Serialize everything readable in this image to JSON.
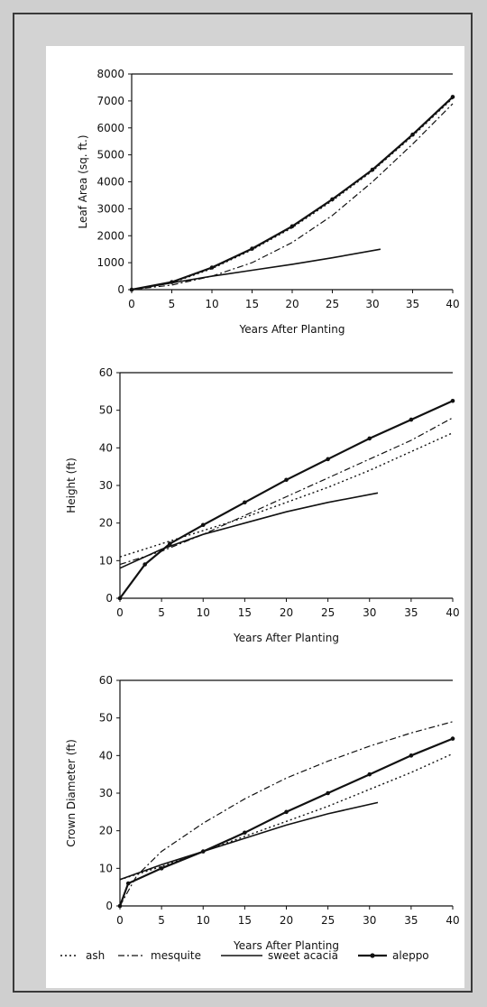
{
  "chart_data": [
    {
      "type": "line",
      "xlabel": "Years After Planting",
      "ylabel": "Leaf Area (sq. ft.)",
      "xlim": [
        0,
        40
      ],
      "ylim": [
        0,
        8000
      ],
      "xticks": [
        0,
        5,
        10,
        15,
        20,
        25,
        30,
        35,
        40
      ],
      "yticks": [
        0,
        1000,
        2000,
        3000,
        4000,
        5000,
        6000,
        7000,
        8000
      ],
      "series": [
        {
          "name": "ash",
          "style": "dotted",
          "x": [
            0,
            5,
            10,
            15,
            20,
            25,
            30,
            35,
            40
          ],
          "y": [
            0,
            250,
            780,
            1480,
            2300,
            3300,
            4400,
            5700,
            7100
          ]
        },
        {
          "name": "mesquite",
          "style": "dashdot",
          "x": [
            0,
            5,
            10,
            15,
            20,
            25,
            30,
            35,
            40
          ],
          "y": [
            0,
            170,
            500,
            1000,
            1750,
            2750,
            4000,
            5400,
            6900
          ]
        },
        {
          "name": "sweet acacia",
          "style": "solid",
          "x": [
            0,
            5,
            10,
            15,
            20,
            25,
            31
          ],
          "y": [
            0,
            250,
            500,
            720,
            940,
            1180,
            1500
          ]
        },
        {
          "name": "aleppo",
          "style": "marked",
          "x": [
            0,
            5,
            10,
            15,
            20,
            25,
            30,
            35,
            40
          ],
          "y": [
            0,
            280,
            820,
            1520,
            2350,
            3350,
            4450,
            5750,
            7150
          ]
        }
      ]
    },
    {
      "type": "line",
      "xlabel": "Years After Planting",
      "ylabel": "Height (ft)",
      "xlim": [
        0,
        40
      ],
      "ylim": [
        0,
        60
      ],
      "xticks": [
        0,
        5,
        10,
        15,
        20,
        25,
        30,
        35,
        40
      ],
      "yticks": [
        0,
        10,
        20,
        30,
        40,
        50,
        60
      ],
      "series": [
        {
          "name": "ash",
          "style": "dotted",
          "x": [
            0,
            5,
            10,
            15,
            20,
            25,
            30,
            35,
            40
          ],
          "y": [
            11,
            14.5,
            18,
            21.5,
            25.5,
            29.5,
            34,
            39,
            44
          ]
        },
        {
          "name": "mesquite",
          "style": "dashdot",
          "x": [
            0,
            5,
            10,
            15,
            20,
            25,
            30,
            35,
            40
          ],
          "y": [
            9,
            12.5,
            17,
            22,
            27,
            32,
            37,
            42,
            48
          ]
        },
        {
          "name": "sweet acacia",
          "style": "solid",
          "x": [
            0,
            5,
            10,
            15,
            20,
            25,
            31
          ],
          "y": [
            8,
            13,
            17,
            20,
            23,
            25.5,
            28
          ]
        },
        {
          "name": "aleppo",
          "style": "marked",
          "x": [
            0,
            3,
            6,
            10,
            15,
            20,
            25,
            30,
            35,
            40
          ],
          "y": [
            0,
            9,
            14.5,
            19.5,
            25.5,
            31.5,
            37,
            42.5,
            47.5,
            52.5
          ]
        }
      ]
    },
    {
      "type": "line",
      "xlabel": "Years After Planting",
      "ylabel": "Crown Diameter (ft)",
      "xlim": [
        0,
        40
      ],
      "ylim": [
        0,
        60
      ],
      "xticks": [
        0,
        5,
        10,
        15,
        20,
        25,
        30,
        35,
        40
      ],
      "yticks": [
        0,
        10,
        20,
        30,
        40,
        50,
        60
      ],
      "series": [
        {
          "name": "ash",
          "style": "dotted",
          "x": [
            0,
            5,
            10,
            15,
            20,
            25,
            30,
            35,
            40
          ],
          "y": [
            7,
            10.5,
            14.5,
            18.5,
            22.5,
            26.5,
            31,
            35.5,
            40.5
          ]
        },
        {
          "name": "mesquite",
          "style": "dashdot",
          "x": [
            0,
            2,
            5,
            10,
            15,
            20,
            25,
            30,
            35,
            40
          ],
          "y": [
            0,
            8,
            14.5,
            22,
            28.5,
            34,
            38.5,
            42.5,
            46,
            49
          ]
        },
        {
          "name": "sweet acacia",
          "style": "solid",
          "x": [
            0,
            5,
            10,
            15,
            20,
            25,
            31
          ],
          "y": [
            7,
            11,
            14.5,
            18,
            21.5,
            24.5,
            27.5
          ]
        },
        {
          "name": "aleppo",
          "style": "marked",
          "x": [
            0,
            1,
            5,
            10,
            15,
            20,
            25,
            30,
            35,
            40
          ],
          "y": [
            0,
            6,
            10,
            14.5,
            19.5,
            25,
            30,
            35,
            40,
            44.5
          ]
        }
      ]
    }
  ],
  "legend": [
    {
      "label": "ash",
      "style": "dotted"
    },
    {
      "label": "mesquite",
      "style": "dashdot"
    },
    {
      "label": "sweet acacia",
      "style": "solid"
    },
    {
      "label": "aleppo",
      "style": "marked"
    }
  ]
}
